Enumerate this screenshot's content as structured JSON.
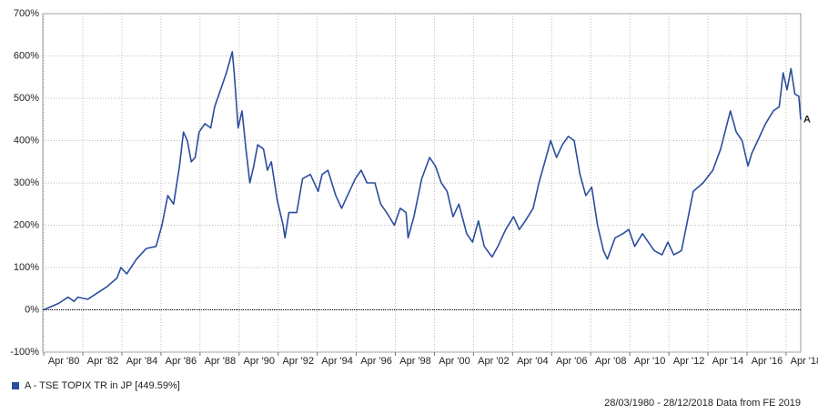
{
  "chart_data": {
    "type": "line",
    "x": [
      1980.25,
      1981,
      1981.5,
      1981.8,
      1982,
      1982.5,
      1983,
      1983.5,
      1984,
      1984.2,
      1984.5,
      1985,
      1985.5,
      1986,
      1986.3,
      1986.6,
      1986.9,
      1987.2,
      1987.4,
      1987.6,
      1987.8,
      1988,
      1988.2,
      1988.5,
      1988.8,
      1989,
      1989.3,
      1989.6,
      1989.9,
      1990,
      1990.2,
      1990.4,
      1990.6,
      1990.8,
      1991,
      1991.2,
      1991.5,
      1991.7,
      1991.9,
      1992.2,
      1992.5,
      1992.6,
      1992.8,
      1993.2,
      1993.5,
      1993.9,
      1994.3,
      1994.5,
      1994.8,
      1995.2,
      1995.5,
      1995.8,
      1996.2,
      1996.5,
      1996.8,
      1997.2,
      1997.5,
      1997.8,
      1998.2,
      1998.5,
      1998.8,
      1998.9,
      1999.2,
      1999.6,
      2000,
      2000.3,
      2000.6,
      2000.9,
      2001.2,
      2001.5,
      2001.9,
      2002.2,
      2002.5,
      2002.8,
      2003.2,
      2003.5,
      2003.9,
      2004.3,
      2004.6,
      2004.9,
      2005.3,
      2005.6,
      2005.9,
      2006.2,
      2006.5,
      2006.8,
      2007.1,
      2007.4,
      2007.7,
      2008,
      2008.3,
      2008.6,
      2008.9,
      2009.1,
      2009.5,
      2009.9,
      2010.2,
      2010.5,
      2010.9,
      2011.2,
      2011.5,
      2011.9,
      2012.2,
      2012.5,
      2012.9,
      2013.2,
      2013.5,
      2014,
      2014.5,
      2014.9,
      2015.4,
      2015.7,
      2016,
      2016.3,
      2016.5,
      2016.8,
      2017.2,
      2017.6,
      2017.9,
      2018.1,
      2018.3,
      2018.5,
      2018.7,
      2018.9,
      2019
    ],
    "series": [
      {
        "name": "A - TSE TOPIX TR in JP [449.59%]",
        "end_label": "A",
        "color": "#2a4d9e",
        "values": [
          0,
          15,
          30,
          20,
          30,
          25,
          40,
          55,
          75,
          100,
          85,
          120,
          145,
          150,
          200,
          270,
          250,
          340,
          420,
          400,
          350,
          360,
          420,
          440,
          430,
          480,
          520,
          560,
          610,
          560,
          430,
          470,
          380,
          300,
          340,
          390,
          380,
          330,
          350,
          260,
          200,
          170,
          230,
          230,
          310,
          320,
          280,
          320,
          330,
          270,
          240,
          270,
          310,
          330,
          300,
          300,
          250,
          230,
          200,
          240,
          230,
          170,
          220,
          310,
          360,
          340,
          300,
          280,
          220,
          250,
          180,
          160,
          210,
          150,
          125,
          150,
          190,
          220,
          190,
          210,
          240,
          300,
          350,
          400,
          360,
          390,
          410,
          400,
          320,
          270,
          290,
          200,
          140,
          120,
          170,
          180,
          190,
          150,
          180,
          160,
          140,
          130,
          160,
          130,
          140,
          210,
          280,
          300,
          330,
          380,
          470,
          420,
          400,
          340,
          370,
          400,
          440,
          470,
          480,
          560,
          520,
          570,
          510,
          505,
          449.59
        ]
      }
    ],
    "xlim": [
      1980.2,
      2019
    ],
    "xticks": [
      {
        "value": 1980.25,
        "label": "Apr '80"
      },
      {
        "value": 1982.25,
        "label": "Apr '82"
      },
      {
        "value": 1984.25,
        "label": "Apr '84"
      },
      {
        "value": 1986.25,
        "label": "Apr '86"
      },
      {
        "value": 1988.25,
        "label": "Apr '88"
      },
      {
        "value": 1990.25,
        "label": "Apr '90"
      },
      {
        "value": 1992.25,
        "label": "Apr '92"
      },
      {
        "value": 1994.25,
        "label": "Apr '94"
      },
      {
        "value": 1996.25,
        "label": "Apr '96"
      },
      {
        "value": 1998.25,
        "label": "Apr '98"
      },
      {
        "value": 2000.25,
        "label": "Apr '00"
      },
      {
        "value": 2002.25,
        "label": "Apr '02"
      },
      {
        "value": 2004.25,
        "label": "Apr '04"
      },
      {
        "value": 2006.25,
        "label": "Apr '06"
      },
      {
        "value": 2008.25,
        "label": "Apr '08"
      },
      {
        "value": 2010.25,
        "label": "Apr '10"
      },
      {
        "value": 2012.25,
        "label": "Apr '12"
      },
      {
        "value": 2014.25,
        "label": "Apr '14"
      },
      {
        "value": 2016.25,
        "label": "Apr '16"
      },
      {
        "value": 2018.25,
        "label": "Apr '18"
      }
    ],
    "ylim": [
      -100,
      700
    ],
    "yticks": [
      {
        "value": -100,
        "label": "-100%"
      },
      {
        "value": 0,
        "label": "0%"
      },
      {
        "value": 100,
        "label": "100%"
      },
      {
        "value": 200,
        "label": "200%"
      },
      {
        "value": 300,
        "label": "300%"
      },
      {
        "value": 400,
        "label": "400%"
      },
      {
        "value": 500,
        "label": "500%"
      },
      {
        "value": 600,
        "label": "600%"
      },
      {
        "value": 700,
        "label": "700%"
      }
    ],
    "grid": true,
    "footer": "28/03/1980 - 28/12/2018 Data from FE 2019"
  }
}
